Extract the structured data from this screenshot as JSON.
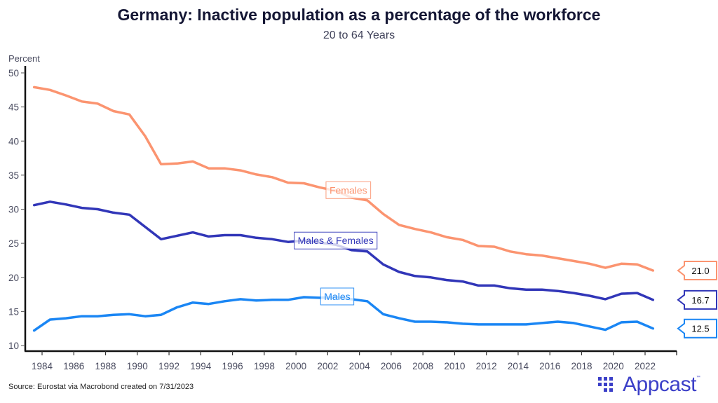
{
  "header": {
    "title": "Germany: Inactive population as a percentage of the workforce",
    "subtitle": "20 to 64 Years"
  },
  "footer": {
    "source": "Source: Eurostat via Macrobond created on 7/31/2023",
    "logo_text": "Appcast",
    "logo_tm": "™"
  },
  "chart_data": {
    "type": "line",
    "title": "Germany: Inactive population as a percentage of the workforce",
    "subtitle": "20 to 64 Years",
    "xlabel": "",
    "ylabel": "Percent",
    "ylim": [
      10,
      50
    ],
    "xlim": [
      1983,
      2024
    ],
    "yticks": [
      10,
      15,
      20,
      25,
      30,
      35,
      40,
      45,
      50
    ],
    "xticks": [
      1984,
      1986,
      1988,
      1990,
      1992,
      1994,
      1996,
      1998,
      2000,
      2002,
      2004,
      2006,
      2008,
      2010,
      2012,
      2014,
      2016,
      2018,
      2020,
      2022
    ],
    "grid": false,
    "legend": "inline labels",
    "x": [
      1983.5,
      1984.5,
      1985.5,
      1986.5,
      1987.5,
      1988.5,
      1989.5,
      1990.5,
      1991.5,
      1992.5,
      1993.5,
      1994.5,
      1995.5,
      1996.5,
      1997.5,
      1998.5,
      1999.5,
      2000.5,
      2001.5,
      2002.5,
      2003.5,
      2004.5,
      2005.5,
      2006.5,
      2007.5,
      2008.5,
      2009.5,
      2010.5,
      2011.5,
      2012.5,
      2013.5,
      2014.5,
      2015.5,
      2016.5,
      2017.5,
      2018.5,
      2019.5,
      2020.5,
      2021.5,
      2022.5
    ],
    "series": [
      {
        "name": "Females",
        "color": "#fb9470",
        "label_year": 2003.3,
        "label_value": 32.8,
        "end_value": "21.0",
        "values": [
          47.9,
          47.5,
          46.7,
          45.8,
          45.5,
          44.4,
          43.9,
          40.7,
          36.6,
          36.7,
          37.0,
          36.0,
          36.0,
          35.7,
          35.1,
          34.7,
          33.9,
          33.8,
          33.2,
          32.7,
          31.7,
          31.3,
          29.3,
          27.7,
          27.1,
          26.6,
          25.9,
          25.5,
          24.6,
          24.5,
          23.8,
          23.4,
          23.2,
          22.8,
          22.4,
          22.0,
          21.4,
          22.0,
          21.9,
          21.0
        ]
      },
      {
        "name": "Males & Females",
        "color": "#3136b8",
        "label_year": 2002.5,
        "label_value": 25.4,
        "end_value": "16.7",
        "values": [
          30.6,
          31.1,
          30.7,
          30.2,
          30.0,
          29.5,
          29.2,
          27.4,
          25.6,
          26.1,
          26.6,
          26.0,
          26.2,
          26.2,
          25.8,
          25.6,
          25.2,
          25.4,
          25.1,
          24.8,
          24.0,
          23.8,
          21.9,
          20.8,
          20.2,
          20.0,
          19.6,
          19.4,
          18.8,
          18.8,
          18.4,
          18.2,
          18.2,
          18.0,
          17.7,
          17.3,
          16.8,
          17.6,
          17.7,
          16.7
        ]
      },
      {
        "name": "Males",
        "color": "#1a86f4",
        "label_year": 2002.6,
        "label_value": 17.2,
        "end_value": "12.5",
        "values": [
          12.2,
          13.8,
          14.0,
          14.3,
          14.3,
          14.5,
          14.6,
          14.3,
          14.5,
          15.6,
          16.3,
          16.1,
          16.5,
          16.8,
          16.6,
          16.7,
          16.7,
          17.1,
          17.0,
          17.1,
          16.8,
          16.5,
          14.6,
          14.0,
          13.5,
          13.5,
          13.4,
          13.2,
          13.1,
          13.1,
          13.1,
          13.1,
          13.3,
          13.5,
          13.3,
          12.8,
          12.3,
          13.4,
          13.5,
          12.5
        ]
      }
    ]
  }
}
